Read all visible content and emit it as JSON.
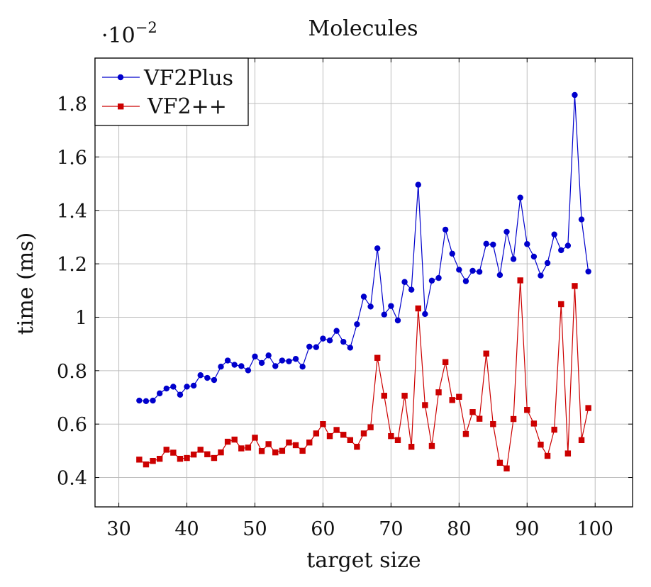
{
  "chart_data": {
    "type": "line",
    "title": "Molecules",
    "scale_label": "·10",
    "scale_exponent": "−2",
    "xlabel": "target size",
    "ylabel": "time (ms)",
    "xlim": [
      26.5,
      105.5
    ],
    "ylim": [
      0.29,
      1.97
    ],
    "xticks": [
      30,
      40,
      50,
      60,
      70,
      80,
      90,
      100
    ],
    "yticks": [
      0.4,
      0.6,
      0.8,
      1.0,
      1.2,
      1.4,
      1.6,
      1.8
    ],
    "xtick_labels": [
      "30",
      "40",
      "50",
      "60",
      "70",
      "80",
      "90",
      "100"
    ],
    "ytick_labels": [
      "0.4",
      "0.6",
      "0.8",
      "1",
      "1.2",
      "1.4",
      "1.6",
      "1.8"
    ],
    "grid": true,
    "legend_position": "top-left",
    "x": [
      33,
      34,
      35,
      36,
      37,
      38,
      39,
      40,
      41,
      42,
      43,
      44,
      45,
      46,
      47,
      48,
      49,
      50,
      51,
      52,
      53,
      54,
      55,
      56,
      57,
      58,
      59,
      60,
      61,
      62,
      63,
      64,
      65,
      66,
      67,
      68,
      69,
      70,
      71,
      72,
      73,
      74,
      75,
      76,
      77,
      78,
      79,
      80,
      81,
      82,
      83,
      84,
      85,
      86,
      87,
      88,
      89,
      90,
      91,
      92,
      93,
      94,
      95,
      96,
      97,
      98,
      99
    ],
    "series": [
      {
        "name": "VF2Plus",
        "color": "#0000cc",
        "marker": "circle",
        "values": [
          0.688,
          0.686,
          0.688,
          0.715,
          0.733,
          0.74,
          0.71,
          0.74,
          0.744,
          0.783,
          0.773,
          0.765,
          0.815,
          0.838,
          0.822,
          0.817,
          0.801,
          0.853,
          0.829,
          0.857,
          0.817,
          0.838,
          0.835,
          0.844,
          0.815,
          0.89,
          0.888,
          0.92,
          0.913,
          0.949,
          0.908,
          0.886,
          0.974,
          1.077,
          1.04,
          1.258,
          1.01,
          1.042,
          0.988,
          1.132,
          1.103,
          1.496,
          1.012,
          1.137,
          1.147,
          1.328,
          1.238,
          1.178,
          1.135,
          1.174,
          1.17,
          1.275,
          1.272,
          1.158,
          1.32,
          1.218,
          1.448,
          1.274,
          1.227,
          1.156,
          1.203,
          1.31,
          1.251,
          1.268,
          1.832,
          1.366,
          1.171
        ]
      },
      {
        "name": "VF2++",
        "color": "#cc0000",
        "marker": "square",
        "values": [
          0.467,
          0.449,
          0.462,
          0.47,
          0.504,
          0.493,
          0.47,
          0.473,
          0.486,
          0.504,
          0.487,
          0.473,
          0.494,
          0.534,
          0.542,
          0.509,
          0.512,
          0.549,
          0.499,
          0.525,
          0.494,
          0.5,
          0.531,
          0.521,
          0.5,
          0.531,
          0.565,
          0.6,
          0.555,
          0.578,
          0.56,
          0.54,
          0.515,
          0.565,
          0.588,
          0.848,
          0.706,
          0.555,
          0.54,
          0.706,
          0.515,
          1.033,
          0.671,
          0.518,
          0.719,
          0.832,
          0.69,
          0.702,
          0.563,
          0.645,
          0.62,
          0.864,
          0.6,
          0.455,
          0.434,
          0.619,
          1.138,
          0.653,
          0.602,
          0.523,
          0.481,
          0.579,
          1.049,
          0.49,
          1.117,
          0.54,
          0.66
        ]
      }
    ]
  }
}
